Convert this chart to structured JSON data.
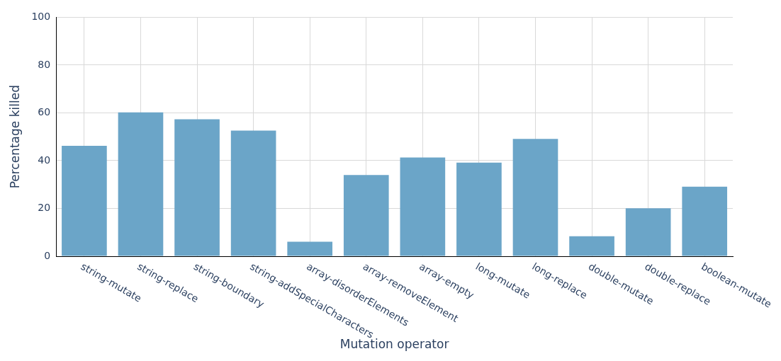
{
  "chart_data": {
    "type": "bar",
    "xlabel": "Mutation operator",
    "ylabel": "Percentage killed",
    "categories": [
      "string-mutate",
      "string-replace",
      "string-boundary",
      "string-addSpecialCharacters",
      "array-disorderElements",
      "array-removeElement",
      "array-empty",
      "long-mutate",
      "long-replace",
      "double-mutate",
      "double-replace",
      "boolean-mutate"
    ],
    "values": [
      46.2,
      60.2,
      57.3,
      52.6,
      6.1,
      34.0,
      41.3,
      39.2,
      49.1,
      8.4,
      20.1,
      29.1
    ],
    "color": "#6ba5c8",
    "ylim": [
      0,
      100
    ],
    "yticks": [
      0,
      20,
      40,
      60,
      80,
      100
    ],
    "grid": true
  }
}
